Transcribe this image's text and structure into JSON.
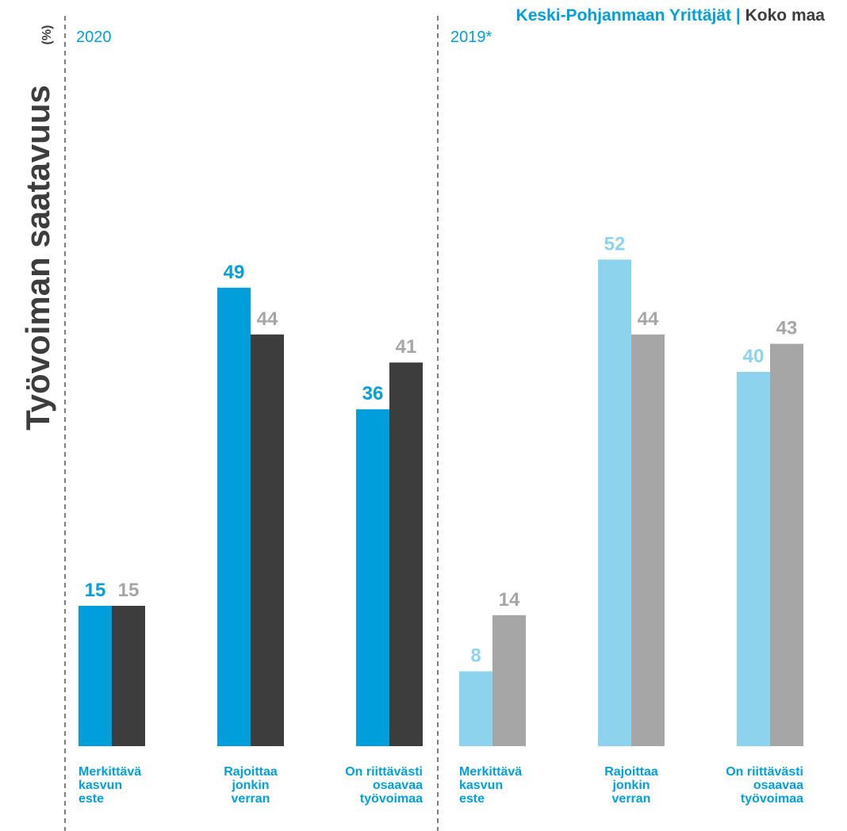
{
  "legend": {
    "primary": "Keski-Pohjanmaan Yrittäjät",
    "separator": " | ",
    "secondary": "Koko maa"
  },
  "side_title": {
    "main": "Työvoiman saatavuus",
    "unit": "(%)"
  },
  "colors": {
    "kp_2020": "#009fdb",
    "kokomaa_2020": "#3d3d3d",
    "kp_2019": "#8dd3ee",
    "kokomaa_2019": "#a6a6a6",
    "label_blue": "#009fdb",
    "label_gray": "#a6a6a6",
    "divider": "#555555"
  },
  "chart_data": [
    {
      "type": "bar",
      "panel_label": "2020",
      "categories": [
        [
          "Merkittävä",
          "kasvun",
          "este"
        ],
        [
          "Rajoittaa",
          "jonkin",
          "verran"
        ],
        [
          "On riittävästi",
          "osaavaa",
          "työvoimaa"
        ]
      ],
      "series": [
        {
          "name": "Keski-Pohjanmaan Yrittäjät",
          "values": [
            15,
            49,
            36
          ]
        },
        {
          "name": "Koko maa",
          "values": [
            15,
            44,
            41
          ]
        }
      ],
      "ylim": [
        0,
        60
      ]
    },
    {
      "type": "bar",
      "panel_label": "2019*",
      "categories": [
        [
          "Merkittävä",
          "kasvun",
          "este"
        ],
        [
          "Rajoittaa",
          "jonkin",
          "verran"
        ],
        [
          "On riittävästi",
          "osaavaa",
          "työvoimaa"
        ]
      ],
      "series": [
        {
          "name": "Keski-Pohjanmaan Yrittäjät",
          "values": [
            8,
            52,
            40
          ]
        },
        {
          "name": "Koko maa",
          "values": [
            14,
            44,
            43
          ]
        }
      ],
      "ylim": [
        0,
        60
      ]
    }
  ]
}
